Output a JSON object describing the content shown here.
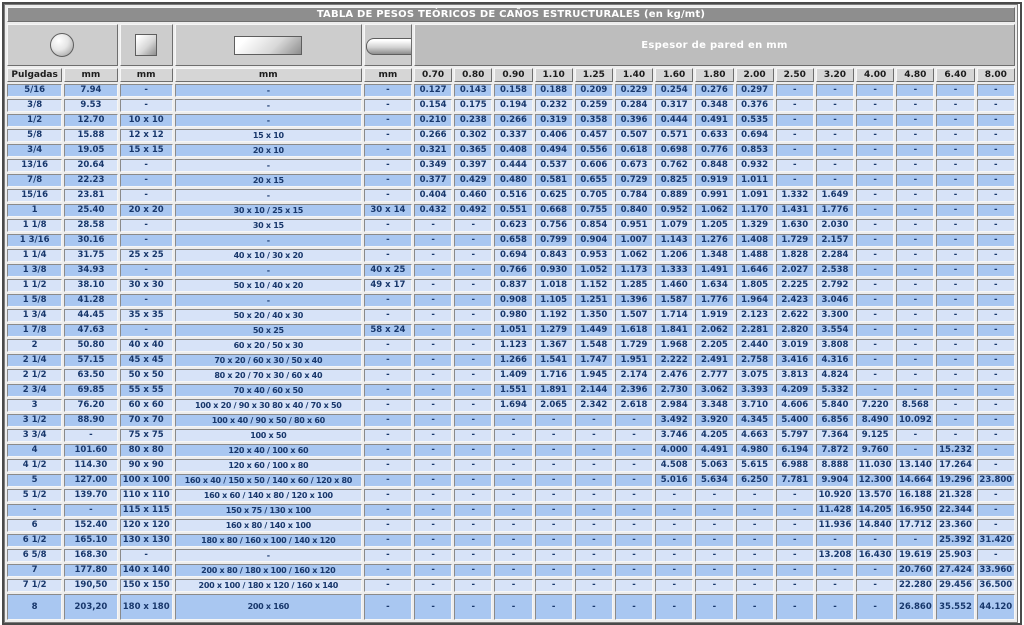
{
  "title": "TABLA DE PESOS TEÓRICOS DE CAÑOS ESTRUCTURALES (en kg/mt)",
  "header": {
    "espesor_label": "Espesor de pared en mm",
    "shape_icons": [
      "round-tube-icon",
      "square-tube-icon",
      "rectangular-tube-icon",
      "oval-tube-icon"
    ],
    "unit_headers": [
      "Pulgadas",
      "mm",
      "mm",
      "mm",
      "mm"
    ],
    "thickness_headers": [
      "0.70",
      "0.80",
      "0.90",
      "1.10",
      "1.25",
      "1.40",
      "1.60",
      "1.80",
      "2.00",
      "2.50",
      "3.20",
      "4.00",
      "4.80",
      "6.40",
      "8.00"
    ]
  },
  "colors": {
    "title_bg": "#8e8e8e",
    "espesor_bg": "#bdbdbd",
    "header_bg": "#d6d6d6",
    "row_dark": "#a9c7f1",
    "row_light": "#d7e3f8",
    "text_navy": "#18376b"
  },
  "rows": [
    [
      "5/16",
      "7.94",
      "-",
      "-",
      "-",
      "0.127",
      "0.143",
      "0.158",
      "0.188",
      "0.209",
      "0.229",
      "0.254",
      "0.276",
      "0.297",
      "-",
      "-",
      "-",
      "-",
      "-",
      "-"
    ],
    [
      "3/8",
      "9.53",
      "-",
      "-",
      "-",
      "0.154",
      "0.175",
      "0.194",
      "0.232",
      "0.259",
      "0.284",
      "0.317",
      "0.348",
      "0.376",
      "-",
      "-",
      "-",
      "-",
      "-",
      "-"
    ],
    [
      "1/2",
      "12.70",
      "10 x 10",
      "-",
      "-",
      "0.210",
      "0.238",
      "0.266",
      "0.319",
      "0.358",
      "0.396",
      "0.444",
      "0.491",
      "0.535",
      "-",
      "-",
      "-",
      "-",
      "-",
      "-"
    ],
    [
      "5/8",
      "15.88",
      "12 x 12",
      "15 x 10",
      "-",
      "0.266",
      "0.302",
      "0.337",
      "0.406",
      "0.457",
      "0.507",
      "0.571",
      "0.633",
      "0.694",
      "-",
      "-",
      "-",
      "-",
      "-",
      "-"
    ],
    [
      "3/4",
      "19.05",
      "15 x 15",
      "20 x 10",
      "-",
      "0.321",
      "0.365",
      "0.408",
      "0.494",
      "0.556",
      "0.618",
      "0.698",
      "0.776",
      "0.853",
      "-",
      "-",
      "-",
      "-",
      "-",
      "-"
    ],
    [
      "13/16",
      "20.64",
      "-",
      "-",
      "-",
      "0.349",
      "0.397",
      "0.444",
      "0.537",
      "0.606",
      "0.673",
      "0.762",
      "0.848",
      "0.932",
      "-",
      "-",
      "-",
      "-",
      "-",
      "-"
    ],
    [
      "7/8",
      "22.23",
      "-",
      "20 x 15",
      "-",
      "0.377",
      "0.429",
      "0.480",
      "0.581",
      "0.655",
      "0.729",
      "0.825",
      "0.919",
      "1.011",
      "-",
      "-",
      "-",
      "-",
      "-",
      "-"
    ],
    [
      "15/16",
      "23.81",
      "-",
      "-",
      "-",
      "0.404",
      "0.460",
      "0.516",
      "0.625",
      "0.705",
      "0.784",
      "0.889",
      "0.991",
      "1.091",
      "1.332",
      "1.649",
      "-",
      "-",
      "-",
      "-"
    ],
    [
      "1",
      "25.40",
      "20 x 20",
      "30 x 10 / 25 x 15",
      "30 x 14",
      "0.432",
      "0.492",
      "0.551",
      "0.668",
      "0.755",
      "0.840",
      "0.952",
      "1.062",
      "1.170",
      "1.431",
      "1.776",
      "-",
      "-",
      "-",
      "-"
    ],
    [
      "1 1/8",
      "28.58",
      "-",
      "30 x 15",
      "-",
      "-",
      "-",
      "0.623",
      "0.756",
      "0.854",
      "0.951",
      "1.079",
      "1.205",
      "1.329",
      "1.630",
      "2.030",
      "-",
      "-",
      "-",
      "-"
    ],
    [
      "1 3/16",
      "30.16",
      "-",
      "-",
      "-",
      "-",
      "-",
      "0.658",
      "0.799",
      "0.904",
      "1.007",
      "1.143",
      "1.276",
      "1.408",
      "1.729",
      "2.157",
      "-",
      "-",
      "-",
      "-"
    ],
    [
      "1 1/4",
      "31.75",
      "25 x 25",
      "40 x 10 / 30 x 20",
      "-",
      "-",
      "-",
      "0.694",
      "0.843",
      "0.953",
      "1.062",
      "1.206",
      "1.348",
      "1.488",
      "1.828",
      "2.284",
      "-",
      "-",
      "-",
      "-"
    ],
    [
      "1 3/8",
      "34.93",
      "-",
      "-",
      "40 x 25",
      "-",
      "-",
      "0.766",
      "0.930",
      "1.052",
      "1.173",
      "1.333",
      "1.491",
      "1.646",
      "2.027",
      "2.538",
      "-",
      "-",
      "-",
      "-"
    ],
    [
      "1 1/2",
      "38.10",
      "30 x 30",
      "50 x 10 / 40 x 20",
      "49 x 17",
      "-",
      "-",
      "0.837",
      "1.018",
      "1.152",
      "1.285",
      "1.460",
      "1.634",
      "1.805",
      "2.225",
      "2.792",
      "-",
      "-",
      "-",
      "-"
    ],
    [
      "1 5/8",
      "41.28",
      "-",
      "-",
      "-",
      "-",
      "-",
      "0.908",
      "1.105",
      "1.251",
      "1.396",
      "1.587",
      "1.776",
      "1.964",
      "2.423",
      "3.046",
      "-",
      "-",
      "-",
      "-"
    ],
    [
      "1 3/4",
      "44.45",
      "35 x 35",
      "50 x 20 / 40 x 30",
      "-",
      "-",
      "-",
      "0.980",
      "1.192",
      "1.350",
      "1.507",
      "1.714",
      "1.919",
      "2.123",
      "2.622",
      "3.300",
      "-",
      "-",
      "-",
      "-"
    ],
    [
      "1 7/8",
      "47.63",
      "-",
      "50 x 25",
      "58 x 24",
      "-",
      "-",
      "1.051",
      "1.279",
      "1.449",
      "1.618",
      "1.841",
      "2.062",
      "2.281",
      "2.820",
      "3.554",
      "-",
      "-",
      "-",
      "-"
    ],
    [
      "2",
      "50.80",
      "40 x 40",
      "60 x 20 / 50 x 30",
      "-",
      "-",
      "-",
      "1.123",
      "1.367",
      "1.548",
      "1.729",
      "1.968",
      "2.205",
      "2.440",
      "3.019",
      "3.808",
      "-",
      "-",
      "-",
      "-"
    ],
    [
      "2 1/4",
      "57.15",
      "45 x 45",
      "70 x 20 / 60 x 30 / 50 x 40",
      "-",
      "-",
      "-",
      "1.266",
      "1.541",
      "1.747",
      "1.951",
      "2.222",
      "2.491",
      "2.758",
      "3.416",
      "4.316",
      "-",
      "-",
      "-",
      "-"
    ],
    [
      "2 1/2",
      "63.50",
      "50 x 50",
      "80 x 20 / 70 x 30 / 60 x 40",
      "-",
      "-",
      "-",
      "1.409",
      "1.716",
      "1.945",
      "2.174",
      "2.476",
      "2.777",
      "3.075",
      "3.813",
      "4.824",
      "-",
      "-",
      "-",
      "-"
    ],
    [
      "2 3/4",
      "69.85",
      "55 x 55",
      "70 x 40 / 60 x 50",
      "-",
      "-",
      "-",
      "1.551",
      "1.891",
      "2.144",
      "2.396",
      "2.730",
      "3.062",
      "3.393",
      "4.209",
      "5.332",
      "-",
      "-",
      "-",
      "-"
    ],
    [
      "3",
      "76.20",
      "60 x 60",
      "100 x 20 / 90 x 30 80 x 40 / 70 x 50",
      "-",
      "-",
      "-",
      "1.694",
      "2.065",
      "2.342",
      "2.618",
      "2.984",
      "3.348",
      "3.710",
      "4.606",
      "5.840",
      "7.220",
      "8.568",
      "-",
      "-"
    ],
    [
      "3 1/2",
      "88.90",
      "70 x 70",
      "100 x 40 / 90 x 50 / 80 x 60",
      "-",
      "-",
      "-",
      "-",
      "-",
      "-",
      "-",
      "3.492",
      "3.920",
      "4.345",
      "5.400",
      "6.856",
      "8.490",
      "10.092",
      "-",
      "-"
    ],
    [
      "3 3/4",
      "-",
      "75 x 75",
      "100 x 50",
      "-",
      "-",
      "-",
      "-",
      "-",
      "-",
      "-",
      "3.746",
      "4.205",
      "4.663",
      "5.797",
      "7.364",
      "9.125",
      "-",
      "-",
      "-"
    ],
    [
      "4",
      "101.60",
      "80 x 80",
      "120 x 40 / 100 x 60",
      "-",
      "-",
      "-",
      "-",
      "-",
      "-",
      "-",
      "4.000",
      "4.491",
      "4.980",
      "6.194",
      "7.872",
      "9.760",
      "-",
      "15.232",
      "-"
    ],
    [
      "4 1/2",
      "114.30",
      "90 x 90",
      "120 x 60 / 100 x 80",
      "-",
      "-",
      "-",
      "-",
      "-",
      "-",
      "-",
      "4.508",
      "5.063",
      "5.615",
      "6.988",
      "8.888",
      "11.030",
      "13.140",
      "17.264",
      "-"
    ],
    [
      "5",
      "127.00",
      "100 x 100",
      "160 x 40 / 150 x 50 / 140 x 60 / 120 x 80",
      "-",
      "-",
      "-",
      "-",
      "-",
      "-",
      "-",
      "5.016",
      "5.634",
      "6.250",
      "7.781",
      "9.904",
      "12.300",
      "14.664",
      "19.296",
      "23.800"
    ],
    [
      "5 1/2",
      "139.70",
      "110 x 110",
      "160 x 60 / 140 x 80 / 120 x 100",
      "-",
      "-",
      "-",
      "-",
      "-",
      "-",
      "-",
      "-",
      "-",
      "-",
      "-",
      "10.920",
      "13.570",
      "16.188",
      "21.328",
      "-"
    ],
    [
      "-",
      "-",
      "115 x 115",
      "150 x 75 / 130 x 100",
      "-",
      "-",
      "-",
      "-",
      "-",
      "-",
      "-",
      "-",
      "-",
      "-",
      "-",
      "11.428",
      "14.205",
      "16.950",
      "22.344",
      "-"
    ],
    [
      "6",
      "152.40",
      "120 x 120",
      "160 x 80 / 140 x 100",
      "-",
      "-",
      "-",
      "-",
      "-",
      "-",
      "-",
      "-",
      "-",
      "-",
      "-",
      "11.936",
      "14.840",
      "17.712",
      "23.360",
      "-"
    ],
    [
      "6 1/2",
      "165.10",
      "130 x 130",
      "180 x 80 / 160 x 100 / 140 x 120",
      "-",
      "-",
      "-",
      "-",
      "-",
      "-",
      "-",
      "-",
      "-",
      "-",
      "-",
      "-",
      "-",
      "-",
      "25.392",
      "31.420"
    ],
    [
      "6 5/8",
      "168.30",
      "-",
      "-",
      "-",
      "-",
      "-",
      "-",
      "-",
      "-",
      "-",
      "-",
      "-",
      "-",
      "-",
      "13.208",
      "16.430",
      "19.619",
      "25.903",
      "-"
    ],
    [
      "7",
      "177.80",
      "140 x 140",
      "200 x 80 / 180 x 100 / 160 x 120",
      "-",
      "-",
      "-",
      "-",
      "-",
      "-",
      "-",
      "-",
      "-",
      "-",
      "-",
      "-",
      "-",
      "20.760",
      "27.424",
      "33.960"
    ],
    [
      "7 1/2",
      "190,50",
      "150 x 150",
      "200 x 100 / 180 x 120 / 160 x 140",
      "-",
      "-",
      "-",
      "-",
      "-",
      "-",
      "-",
      "-",
      "-",
      "-",
      "-",
      "-",
      "-",
      "22.280",
      "29.456",
      "36.500"
    ],
    [
      "8",
      "203,20",
      "180 x 180",
      "200 x 160",
      "-",
      "-",
      "-",
      "-",
      "-",
      "-",
      "-",
      "-",
      "-",
      "-",
      "-",
      "-",
      "-",
      "26.860",
      "35.552",
      "44.120"
    ]
  ]
}
